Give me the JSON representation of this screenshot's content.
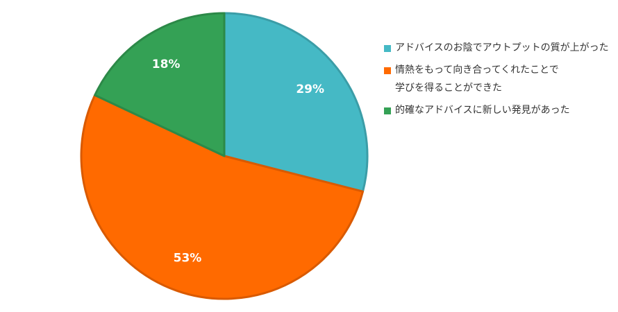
{
  "chart_data": {
    "type": "pie",
    "categories": [
      "アドバイスのお陰でアウトプットの質が上がった",
      "情熱をもって向き合ってくれたことで\n学びを得ることができた",
      "的確なアドバイスに新しい発見があった"
    ],
    "values": [
      29,
      53,
      18
    ],
    "value_labels": [
      "29%",
      "53%",
      "18%"
    ],
    "colors": [
      "#45b9c5",
      "#ff6a00",
      "#34a155"
    ],
    "legend": "right"
  }
}
